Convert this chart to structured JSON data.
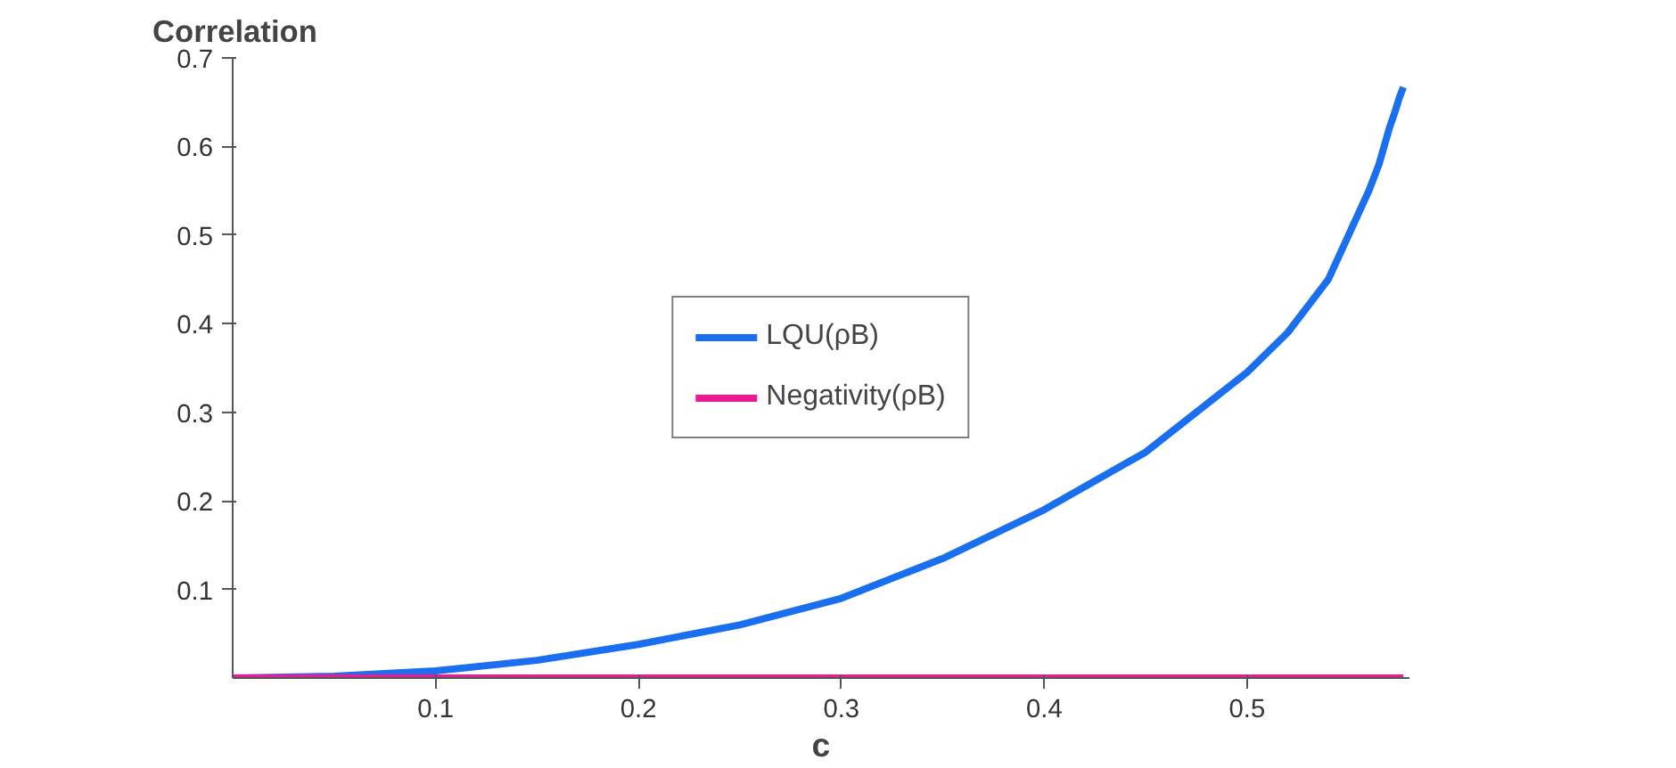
{
  "chart_data": {
    "type": "line",
    "xlabel": "c",
    "ylabel": "Correlation",
    "x": [
      0,
      0.05,
      0.1,
      0.15,
      0.2,
      0.25,
      0.3,
      0.35,
      0.4,
      0.45,
      0.5,
      0.52,
      0.54,
      0.55,
      0.56,
      0.565,
      0.57,
      0.573,
      0.575,
      0.577
    ],
    "series": [
      {
        "name": "LQU(ρB)",
        "color": "#1a6fef",
        "values": [
          0,
          0.002,
          0.008,
          0.02,
          0.038,
          0.06,
          0.09,
          0.135,
          0.19,
          0.255,
          0.345,
          0.39,
          0.45,
          0.5,
          0.55,
          0.58,
          0.62,
          0.64,
          0.655,
          0.667
        ]
      },
      {
        "name": "Negativity(ρB)",
        "color": "#ee1a95",
        "values": [
          0,
          0,
          0,
          0,
          0,
          0,
          0,
          0,
          0,
          0,
          0,
          0,
          0,
          0,
          0,
          0,
          0,
          0,
          0,
          0
        ]
      }
    ],
    "xlim": [
      0,
      0.58
    ],
    "ylim": [
      0,
      0.7
    ],
    "xticks": [
      0.1,
      0.2,
      0.3,
      0.4,
      0.5
    ],
    "yticks": [
      0.1,
      0.2,
      0.3,
      0.4,
      0.5,
      0.6,
      0.7
    ],
    "grid": false,
    "legend": "center",
    "marker": "none",
    "line_style": "solid"
  }
}
